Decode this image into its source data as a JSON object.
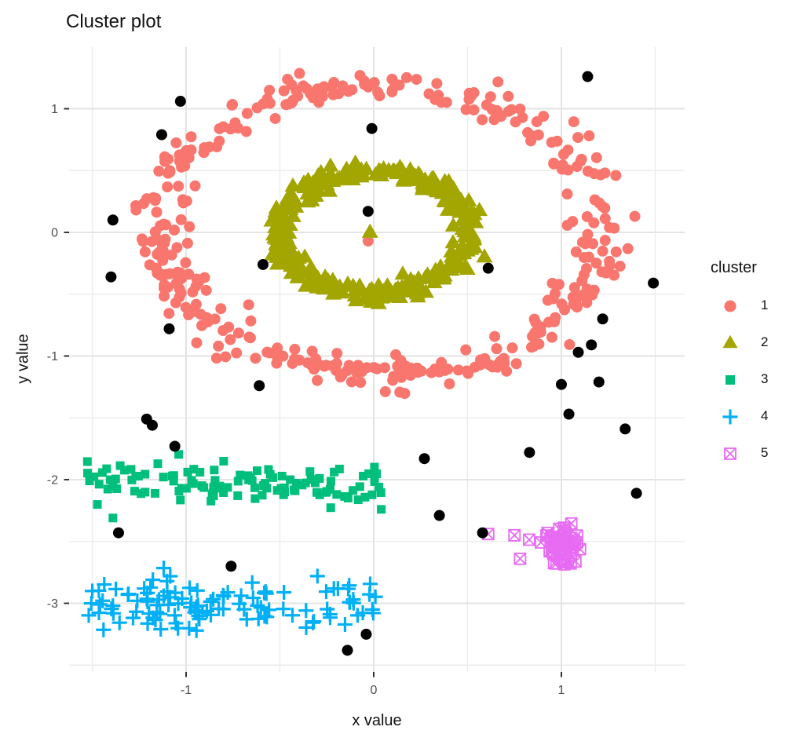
{
  "title": "Cluster plot",
  "axes": {
    "x": {
      "label": "x value",
      "ticks": [
        -1,
        0,
        1
      ],
      "minor_ticks": [
        -1.5,
        -0.5,
        0.5,
        1.5
      ]
    },
    "y": {
      "label": "y value",
      "ticks": [
        1,
        0,
        -1,
        -2,
        -3
      ],
      "minor_ticks": [
        0.5,
        -0.5,
        -1.5,
        -2.5,
        -3.5
      ]
    }
  },
  "legend": {
    "title": "cluster",
    "position": "right",
    "entries": [
      "1",
      "2",
      "3",
      "4",
      "5"
    ]
  },
  "style": {
    "background": "#FFFFFF",
    "grid_major": "#E3E3E3",
    "grid_minor": "#ECECEC",
    "tick_color": "#333333",
    "tick_label_color": "#4D4D4D",
    "text_color": "#111111"
  },
  "chart_data": {
    "type": "scatter",
    "title": "Cluster plot",
    "xlabel": "x value",
    "ylabel": "y value",
    "xlim": [
      -1.62,
      1.66
    ],
    "ylim": [
      -3.56,
      1.5
    ],
    "grid": true,
    "legend_position": "right",
    "series": [
      {
        "cluster": "1",
        "shape": "circle",
        "color": "#F8766D",
        "size": 7,
        "generator": {
          "kind": "ring",
          "n": 375,
          "cx": 0.04,
          "cy": 0.03,
          "r_mean": 1.18,
          "r_sd": 0.075,
          "seed": 7
        },
        "extra_points": [
          [
            -0.03,
            -0.07
          ]
        ]
      },
      {
        "cluster": "2",
        "shape": "triangle",
        "color": "#A3A500",
        "size": 21,
        "generator": {
          "kind": "ring",
          "n": 340,
          "cx": 0.0,
          "cy": 0.0,
          "r_mean": 0.5,
          "r_sd": 0.035,
          "seed": 13
        },
        "extra_points": [
          [
            -0.02,
            0.0
          ],
          [
            0.53,
            -0.12
          ],
          [
            0.59,
            -0.2
          ]
        ]
      },
      {
        "cluster": "3",
        "shape": "square",
        "color": "#00BF7D",
        "size": 11,
        "generator": {
          "kind": "band",
          "n": 112,
          "x_min": -1.53,
          "x_max": 0.05,
          "y_mean": -2.02,
          "y_sd": 0.085,
          "seed": 21
        },
        "extra_points": [
          [
            0.04,
            -2.24
          ],
          [
            -1.39,
            -2.31
          ]
        ]
      },
      {
        "cluster": "4",
        "shape": "plus",
        "color": "#00B0F6",
        "size": 19,
        "generator": {
          "kind": "band",
          "n": 112,
          "x_min": -1.52,
          "x_max": 0.01,
          "y_mean": -3.0,
          "y_sd": 0.11,
          "seed": 29
        },
        "extra_points": [
          [
            -0.3,
            -2.78
          ]
        ]
      },
      {
        "cluster": "5",
        "shape": "square-x",
        "color": "#E76BF3",
        "size": 14,
        "generator": {
          "kind": "blob",
          "n": 52,
          "cx": 1.0,
          "cy": -2.53,
          "sd_x": 0.055,
          "sd_y": 0.075,
          "seed": 35
        },
        "extra_points": [
          [
            0.61,
            -2.44
          ],
          [
            0.75,
            -2.45
          ],
          [
            0.78,
            -2.64
          ]
        ]
      }
    ],
    "noise": {
      "label": "noise",
      "shape": "circle",
      "color": "#000000",
      "size": 7,
      "points": [
        [
          -1.03,
          1.06
        ],
        [
          -1.13,
          0.79
        ],
        [
          -0.01,
          0.84
        ],
        [
          -1.39,
          0.1
        ],
        [
          -0.03,
          0.17
        ],
        [
          -1.4,
          -0.36
        ],
        [
          -0.59,
          -0.26
        ],
        [
          -1.09,
          -0.78
        ],
        [
          1.14,
          1.26
        ],
        [
          0.61,
          -0.29
        ],
        [
          1.49,
          -0.41
        ],
        [
          1.22,
          -0.7
        ],
        [
          1.16,
          -0.91
        ],
        [
          1.09,
          -0.97
        ],
        [
          -0.61,
          -1.24
        ],
        [
          -1.21,
          -1.51
        ],
        [
          -1.18,
          -1.56
        ],
        [
          -1.06,
          -1.73
        ],
        [
          -1.36,
          -2.43
        ],
        [
          -0.76,
          -2.7
        ],
        [
          -0.04,
          -3.25
        ],
        [
          -0.14,
          -3.38
        ],
        [
          1.0,
          -1.23
        ],
        [
          1.2,
          -1.21
        ],
        [
          1.04,
          -1.47
        ],
        [
          1.34,
          -1.59
        ],
        [
          0.83,
          -1.78
        ],
        [
          0.27,
          -1.83
        ],
        [
          1.4,
          -2.11
        ],
        [
          0.35,
          -2.29
        ],
        [
          0.58,
          -2.43
        ]
      ]
    }
  }
}
